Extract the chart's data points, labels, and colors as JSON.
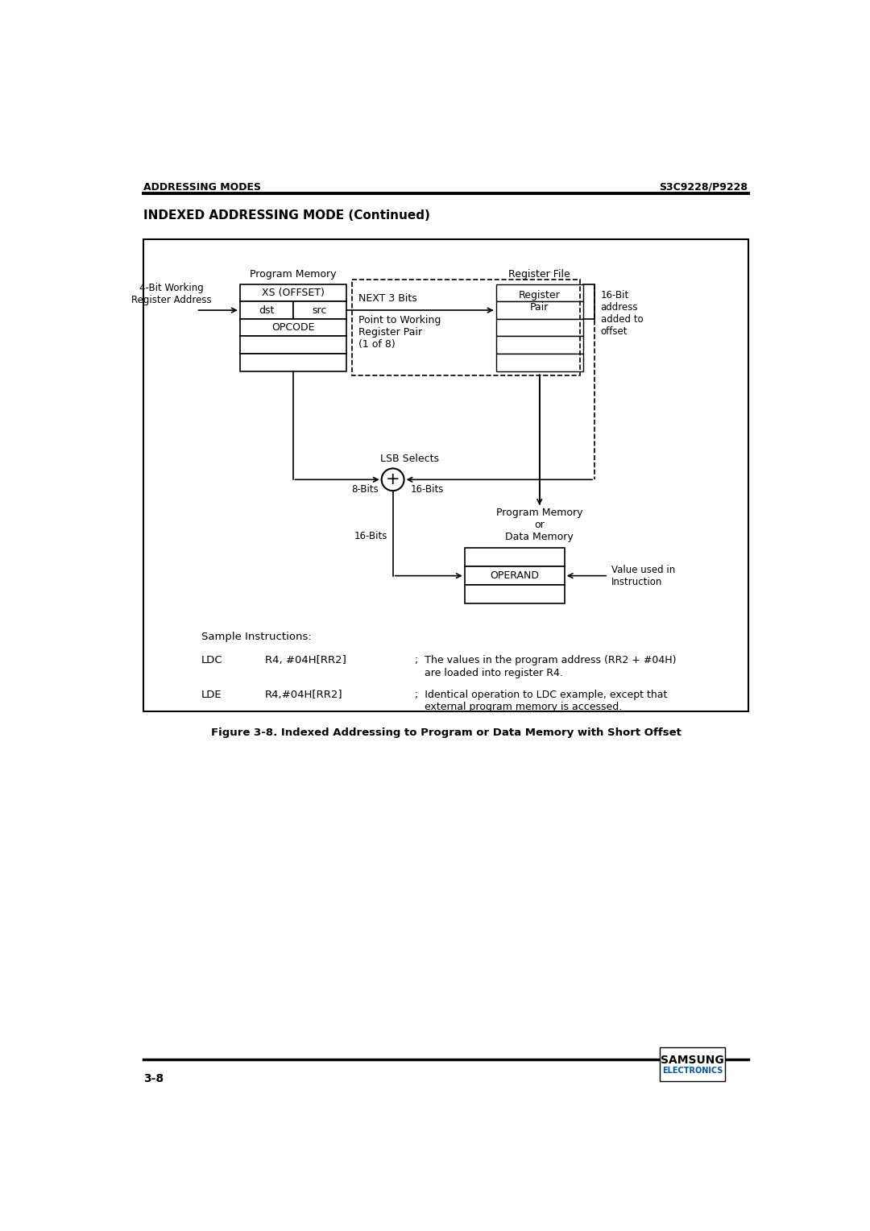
{
  "page_title_left": "ADDRESSING MODES",
  "page_title_right": "S3C9228/P9228",
  "section_title": "INDEXED ADDRESSING MODE (Continued)",
  "figure_caption": "Figure 3-8. Indexed Addressing to Program or Data Memory with Short Offset",
  "page_number": "3-8",
  "bg_color": "#ffffff",
  "labels": {
    "program_memory": "Program Memory",
    "register_file": "Register File",
    "xs_offset": "XS (OFFSET)",
    "dst": "dst",
    "src": "src",
    "opcode": "OPCODE",
    "next_3_bits": "NEXT 3 Bits",
    "point_to_working": "Point to Working\nRegister Pair\n(1 of 8)",
    "register_pair_label": "Register\nPair",
    "lsb_selects": "LSB Selects",
    "plus": "+",
    "eight_bits": "8-Bits",
    "sixteen_bits_adder": "16-Bits",
    "sixteen_bit_desc": "16-Bit\naddress\nadded to\noffset",
    "program_memory2": "Program Memory\nor\nData Memory",
    "operand": "OPERAND",
    "sixteen_bits_bottom": "16-Bits",
    "value_used": "Value used in\nInstruction",
    "four_bit_working": "4-Bit Working\nRegister Address",
    "sample_instructions": "Sample Instructions:",
    "ldc_cmd": "LDC",
    "ldc_arg": "R4, #04H[RR2]",
    "ldc_comment1": ";  The values in the program address (RR2 + #04H)",
    "ldc_comment2": "   are loaded into register R4.",
    "lde_cmd": "LDE",
    "lde_arg": "R4,#04H[RR2]",
    "lde_comment1": ";  Identical operation to LDC example, except that",
    "lde_comment2": "   external program memory is accessed."
  }
}
